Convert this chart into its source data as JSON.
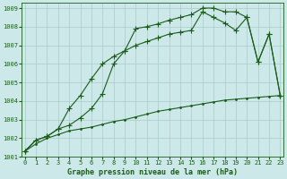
{
  "title": "Graphe pression niveau de la mer (hPa)",
  "background_color": "#cce8e8",
  "grid_color": "#aacccc",
  "line_color": "#1a5c1a",
  "x": [
    0,
    1,
    2,
    3,
    4,
    5,
    6,
    7,
    8,
    9,
    10,
    11,
    12,
    13,
    14,
    15,
    16,
    17,
    18,
    19,
    20,
    21,
    22,
    23
  ],
  "line1": [
    1001.3,
    1001.9,
    1002.1,
    1002.5,
    1002.7,
    1003.1,
    1003.6,
    1004.4,
    1006.0,
    1006.7,
    1007.9,
    1008.0,
    1008.15,
    1008.35,
    1008.5,
    1008.65,
    1009.0,
    1009.0,
    1008.8,
    1008.8,
    1008.5,
    1006.1,
    1007.6,
    1004.3
  ],
  "line2": [
    1001.3,
    1001.9,
    1002.1,
    1002.5,
    1003.6,
    1004.3,
    1005.2,
    1006.0,
    1006.4,
    1006.7,
    1007.0,
    1007.2,
    1007.4,
    1007.6,
    1007.7,
    1007.8,
    1008.8,
    1008.5,
    1008.2,
    1007.8,
    1008.5,
    1006.1,
    1007.6,
    1004.3
  ],
  "line3": [
    1001.3,
    1001.7,
    1002.0,
    1002.2,
    1002.4,
    1002.5,
    1002.6,
    1002.75,
    1002.9,
    1003.0,
    1003.15,
    1003.3,
    1003.45,
    1003.55,
    1003.65,
    1003.75,
    1003.85,
    1003.95,
    1004.05,
    1004.1,
    1004.15,
    1004.2,
    1004.25,
    1004.3
  ],
  "yticks": [
    1001,
    1002,
    1003,
    1004,
    1005,
    1006,
    1007,
    1008,
    1009
  ],
  "xticks": [
    0,
    1,
    2,
    3,
    4,
    5,
    6,
    7,
    8,
    9,
    10,
    11,
    12,
    13,
    14,
    15,
    16,
    17,
    18,
    19,
    20,
    21,
    22,
    23
  ],
  "ylim": [
    1001.0,
    1009.3
  ],
  "xlim": [
    -0.3,
    23.3
  ],
  "tick_fontsize": 5,
  "label_fontsize": 6,
  "marker_size": 2.5,
  "line_width": 0.8
}
